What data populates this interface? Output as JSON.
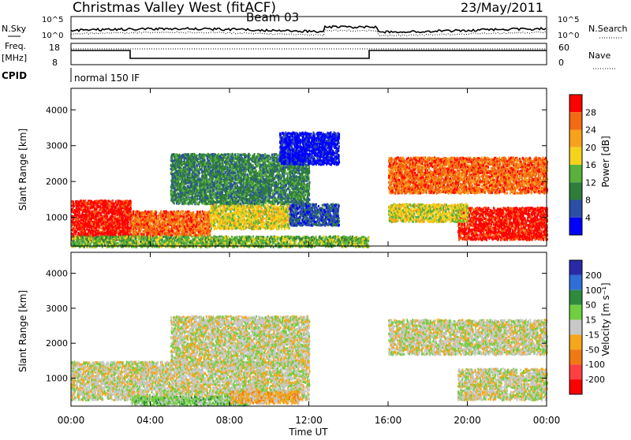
{
  "header": {
    "station": "Christmas Valley West (fitACF)",
    "beam": "Beam 03",
    "date": "23/May/2011"
  },
  "noise_panel": {
    "left_label": "N.Sky",
    "right_label": "N.Search",
    "left_ticks": [
      "10^5",
      "10^0"
    ],
    "right_ticks": [
      "10^5",
      "10^0"
    ]
  },
  "freq_panel": {
    "left_label_1": "Freq.",
    "left_label_2": "[MHz]",
    "right_label": "Nave",
    "left_ticks": [
      "18",
      "8"
    ],
    "right_ticks": [
      "60",
      "0"
    ]
  },
  "cpid": {
    "label": "CPID",
    "value": "normal 150 IF"
  },
  "colors": {
    "power": [
      "#0000ff",
      "#2b4ea6",
      "#2f7d3b",
      "#58b13a",
      "#f5d31c",
      "#f7a21a",
      "#f26a12",
      "#ff0000"
    ],
    "velocity": [
      "#2a2aa8",
      "#2e6ed6",
      "#2e8b3c",
      "#6fcf3f",
      "#c8c8c8",
      "#f6a61a",
      "#f07a12",
      "#ff4040",
      "#ff0000"
    ]
  },
  "chart_data": [
    {
      "type": "heatmap",
      "name": "power",
      "ylabel": "Slant Range [km]",
      "yticks": [
        "1000",
        "2000",
        "3000",
        "4000"
      ],
      "ylim": [
        200,
        4600
      ],
      "xlim": [
        0,
        24
      ],
      "colorbar_label": "Power [dB]",
      "colorbar_ticks": [
        "4",
        "8",
        "12",
        "16",
        "20",
        "24",
        "28"
      ],
      "regions": [
        {
          "t0": 0.0,
          "t1": 3.0,
          "r0": 400,
          "r1": 1500,
          "level": 7
        },
        {
          "t0": 3.0,
          "t1": 7.0,
          "r0": 500,
          "r1": 1200,
          "level": 6
        },
        {
          "t0": 7.0,
          "t1": 11.0,
          "r0": 700,
          "r1": 1400,
          "level": 4
        },
        {
          "t0": 5.0,
          "t1": 12.0,
          "r0": 1400,
          "r1": 2800,
          "level": 2
        },
        {
          "t0": 11.0,
          "t1": 13.5,
          "r0": 800,
          "r1": 1400,
          "level": 1
        },
        {
          "t0": 10.5,
          "t1": 13.5,
          "r0": 2500,
          "r1": 3400,
          "level": 0
        },
        {
          "t0": 16.0,
          "t1": 24.0,
          "r0": 1700,
          "r1": 2700,
          "level": 6
        },
        {
          "t0": 19.5,
          "t1": 24.0,
          "r0": 400,
          "r1": 1300,
          "level": 7
        },
        {
          "t0": 16.0,
          "t1": 20.0,
          "r0": 900,
          "r1": 1400,
          "level": 4
        },
        {
          "t0": 0.0,
          "t1": 15.0,
          "r0": 200,
          "r1": 500,
          "level": 3
        }
      ]
    },
    {
      "type": "heatmap",
      "name": "velocity",
      "ylabel": "Slant Range [km]",
      "yticks": [
        "1000",
        "2000",
        "3000",
        "4000"
      ],
      "ylim": [
        200,
        4600
      ],
      "xlim": [
        0,
        24
      ],
      "xlabel": "Time UT",
      "xticks": [
        "00:00",
        "04:00",
        "08:00",
        "12:00",
        "16:00",
        "20:00",
        "00:00"
      ],
      "colorbar_label": "Velocity [m s⁻¹]",
      "colorbar_ticks": [
        "200",
        "100",
        "50",
        "15",
        "-15",
        "-50",
        "-100",
        "-200"
      ],
      "regions": [
        {
          "t0": 0.0,
          "t1": 12.0,
          "r0": 400,
          "r1": 1500,
          "level": 4
        },
        {
          "t0": 5.0,
          "t1": 12.0,
          "r0": 1400,
          "r1": 2800,
          "level": 4
        },
        {
          "t0": 16.0,
          "t1": 24.0,
          "r0": 1700,
          "r1": 2700,
          "level": 4
        },
        {
          "t0": 19.5,
          "t1": 24.0,
          "r0": 400,
          "r1": 1300,
          "level": 4
        },
        {
          "t0": 3.0,
          "t1": 9.0,
          "r0": 250,
          "r1": 500,
          "level": 3
        },
        {
          "t0": 8.0,
          "t1": 11.5,
          "r0": 300,
          "r1": 650,
          "level": 5
        }
      ]
    }
  ]
}
